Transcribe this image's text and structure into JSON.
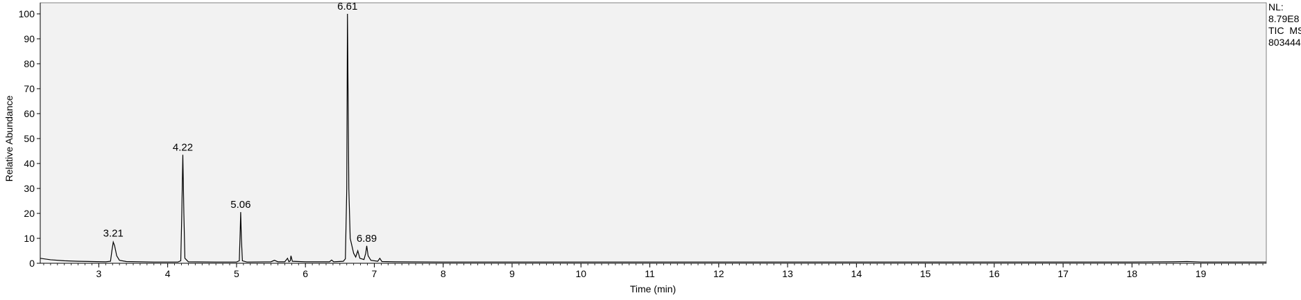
{
  "chart_data": {
    "type": "line",
    "xlabel": "Time (min)",
    "ylabel": "Relative Abundance",
    "xlim": [
      2.15,
      19.95
    ],
    "ylim": [
      0,
      100
    ],
    "x_ticks": [
      3,
      4,
      5,
      6,
      7,
      8,
      9,
      10,
      11,
      12,
      13,
      14,
      15,
      16,
      17,
      18,
      19
    ],
    "x_tick_labels": [
      "3",
      "4",
      "5",
      "6",
      "7",
      "8",
      "9",
      "10",
      "11",
      "12",
      "13",
      "14",
      "15",
      "16",
      "17",
      "18",
      "19"
    ],
    "y_ticks": [
      0,
      10,
      20,
      30,
      40,
      50,
      60,
      70,
      80,
      90,
      100
    ],
    "y_tick_labels": [
      "0",
      "10",
      "20",
      "30",
      "40",
      "50",
      "60",
      "70",
      "80",
      "90",
      "100"
    ],
    "info_text": [
      "NL:",
      "8.79E8",
      "TIC  MS",
      "803444"
    ],
    "peak_labels": [
      {
        "x": 3.21,
        "y": 9,
        "text": "3.21"
      },
      {
        "x": 4.22,
        "y": 43.5,
        "text": "4.22"
      },
      {
        "x": 5.06,
        "y": 20.5,
        "text": "5.06"
      },
      {
        "x": 6.61,
        "y": 100,
        "text": "6.61"
      },
      {
        "x": 6.89,
        "y": 7,
        "text": "6.89"
      }
    ],
    "trace": [
      [
        2.15,
        2.0
      ],
      [
        2.3,
        1.4
      ],
      [
        2.5,
        1.0
      ],
      [
        2.7,
        0.8
      ],
      [
        2.9,
        0.7
      ],
      [
        3.1,
        0.6
      ],
      [
        3.17,
        0.8
      ],
      [
        3.19,
        5.0
      ],
      [
        3.21,
        8.5
      ],
      [
        3.23,
        7.0
      ],
      [
        3.26,
        3.0
      ],
      [
        3.3,
        1.2
      ],
      [
        3.4,
        0.7
      ],
      [
        3.8,
        0.5
      ],
      [
        4.15,
        0.5
      ],
      [
        4.19,
        1.0
      ],
      [
        4.205,
        20.0
      ],
      [
        4.22,
        43.5
      ],
      [
        4.235,
        20.0
      ],
      [
        4.25,
        2.0
      ],
      [
        4.3,
        0.6
      ],
      [
        4.7,
        0.5
      ],
      [
        5.0,
        0.5
      ],
      [
        5.04,
        1.0
      ],
      [
        5.055,
        15.0
      ],
      [
        5.06,
        20.5
      ],
      [
        5.07,
        10.0
      ],
      [
        5.085,
        1.0
      ],
      [
        5.15,
        0.5
      ],
      [
        5.5,
        0.6
      ],
      [
        5.55,
        1.2
      ],
      [
        5.6,
        0.6
      ],
      [
        5.7,
        0.6
      ],
      [
        5.74,
        2.0
      ],
      [
        5.76,
        0.6
      ],
      [
        5.78,
        1.0
      ],
      [
        5.79,
        3.0
      ],
      [
        5.81,
        0.8
      ],
      [
        6.0,
        0.6
      ],
      [
        6.35,
        0.6
      ],
      [
        6.38,
        1.3
      ],
      [
        6.41,
        0.6
      ],
      [
        6.55,
        0.8
      ],
      [
        6.58,
        1.8
      ],
      [
        6.6,
        30.0
      ],
      [
        6.61,
        100.0
      ],
      [
        6.615,
        83.0
      ],
      [
        6.63,
        30.0
      ],
      [
        6.65,
        10.0
      ],
      [
        6.7,
        4.0
      ],
      [
        6.73,
        2.5
      ],
      [
        6.76,
        5.0
      ],
      [
        6.79,
        2.0
      ],
      [
        6.85,
        1.5
      ],
      [
        6.875,
        4.0
      ],
      [
        6.89,
        7.0
      ],
      [
        6.91,
        3.0
      ],
      [
        6.95,
        1.2
      ],
      [
        7.05,
        0.8
      ],
      [
        7.08,
        2.0
      ],
      [
        7.11,
        0.7
      ],
      [
        7.3,
        0.6
      ],
      [
        8.0,
        0.5
      ],
      [
        9.0,
        0.5
      ],
      [
        10.0,
        0.5
      ],
      [
        12.0,
        0.5
      ],
      [
        14.0,
        0.5
      ],
      [
        16.0,
        0.5
      ],
      [
        18.0,
        0.5
      ],
      [
        18.6,
        0.6
      ],
      [
        18.8,
        0.7
      ],
      [
        19.0,
        0.5
      ],
      [
        19.95,
        0.5
      ]
    ]
  }
}
